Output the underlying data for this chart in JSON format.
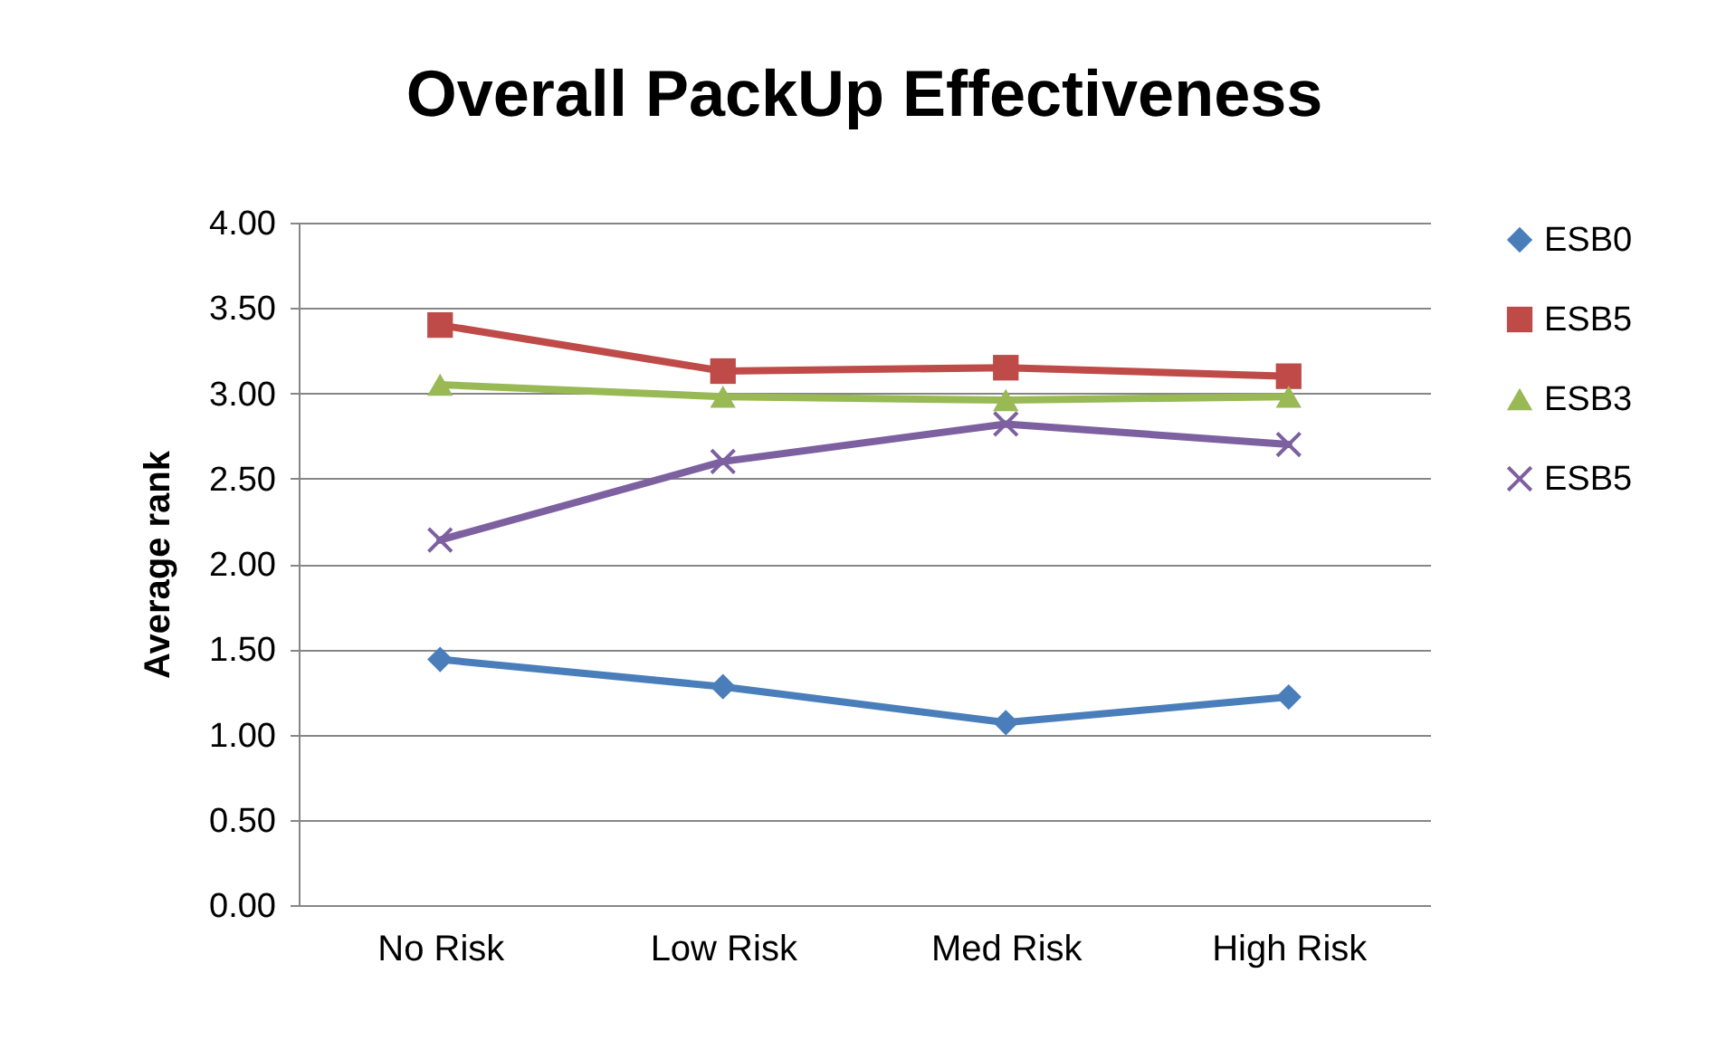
{
  "chart_data": {
    "type": "line",
    "title": "Overall PackUp Effectiveness",
    "ylabel": "Average rank",
    "categories": [
      "No Risk",
      "Low Risk",
      "Med Risk",
      "High Risk"
    ],
    "series": [
      {
        "name": "ESB0",
        "color": "#4a7ebb",
        "marker": "diamond",
        "values": [
          1.44,
          1.28,
          1.07,
          1.22
        ]
      },
      {
        "name": "ESB5",
        "color": "#be4b48",
        "marker": "square",
        "values": [
          3.4,
          3.13,
          3.15,
          3.1
        ]
      },
      {
        "name": "ESB3",
        "color": "#98b954",
        "marker": "triangle",
        "values": [
          3.05,
          2.98,
          2.96,
          2.98
        ]
      },
      {
        "name": "ESB5",
        "color": "#7d60a0",
        "marker": "cross",
        "values": [
          2.14,
          2.6,
          2.82,
          2.7
        ]
      }
    ],
    "ylim": [
      0,
      4
    ],
    "yticks": [
      {
        "value": 0,
        "label": "0.00"
      },
      {
        "value": 0.5,
        "label": "0.50"
      },
      {
        "value": 1,
        "label": "1.00"
      },
      {
        "value": 1.5,
        "label": "1.50"
      },
      {
        "value": 2,
        "label": "2.00"
      },
      {
        "value": 2.5,
        "label": "2.50"
      },
      {
        "value": 3,
        "label": "3.00"
      },
      {
        "value": 3.5,
        "label": "3.50"
      },
      {
        "value": 4,
        "label": "4.00"
      }
    ],
    "grid": "y",
    "legend": "right",
    "line_style": "solid"
  }
}
